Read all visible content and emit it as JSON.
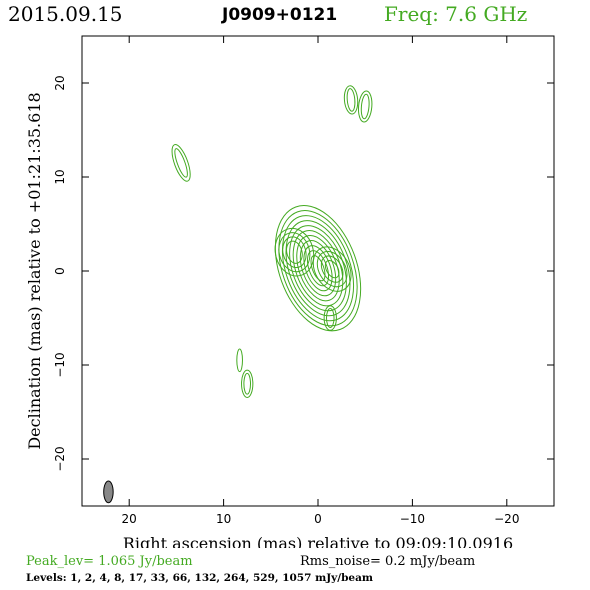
{
  "header": {
    "date": "2015.09.15",
    "source": "J0909+0121",
    "freq": "Freq: 7.6 GHz"
  },
  "footer": {
    "peak": "Peak_lev=  1.065 Jy/beam",
    "rms": "Rms_noise=  0.2 mJy/beam",
    "levels": "Levels:   1,   2,   4,   8,  17,  33,  66, 132, 264, 529, 1057 mJy/beam"
  },
  "colors": {
    "contour": "#44aa22",
    "beam": "#888888"
  },
  "chart_data": {
    "type": "contour",
    "xlabel": "Right ascension (mas) relative to 09:09:10.0916",
    "ylabel": "Declination (mas) relative to +01:21:35.618",
    "xlim": [
      25,
      -25
    ],
    "ylim": [
      -25,
      25
    ],
    "x_ticks": [
      20,
      10,
      0,
      -10,
      -20
    ],
    "x_tick_labels": [
      "20",
      "10",
      "0",
      "−10",
      "−20"
    ],
    "y_ticks": [
      -20,
      -10,
      0,
      10,
      20
    ],
    "y_tick_labels": [
      "−20",
      "−10",
      "0",
      "10",
      "20"
    ],
    "contour_levels_mJy": [
      1,
      2,
      4,
      8,
      17,
      33,
      66,
      132,
      264,
      529,
      1057
    ],
    "components": [
      {
        "ra": 0,
        "dec": 0.3,
        "peak_level": 11
      },
      {
        "ra": 2.5,
        "dec": 2.0,
        "peak_level": 4
      },
      {
        "ra": -1.5,
        "dec": 0.2,
        "peak_level": 4
      },
      {
        "ra": -1.3,
        "dec": -5.0,
        "peak_level": 2
      },
      {
        "ra": -3.5,
        "dec": 18.2,
        "peak_level": 2
      },
      {
        "ra": -5.0,
        "dec": 17.5,
        "peak_level": 2
      },
      {
        "ra": 14.5,
        "dec": 11.5,
        "peak_level": 2
      },
      {
        "ra": 7.5,
        "dec": -12.0,
        "peak_level": 2
      },
      {
        "ra": 8.3,
        "dec": -9.5,
        "peak_level": 1
      }
    ],
    "beam": {
      "ra": 22.2,
      "dec": -23.5,
      "major_mas": 2.3,
      "minor_mas": 1.0,
      "pa_deg": 0
    }
  }
}
